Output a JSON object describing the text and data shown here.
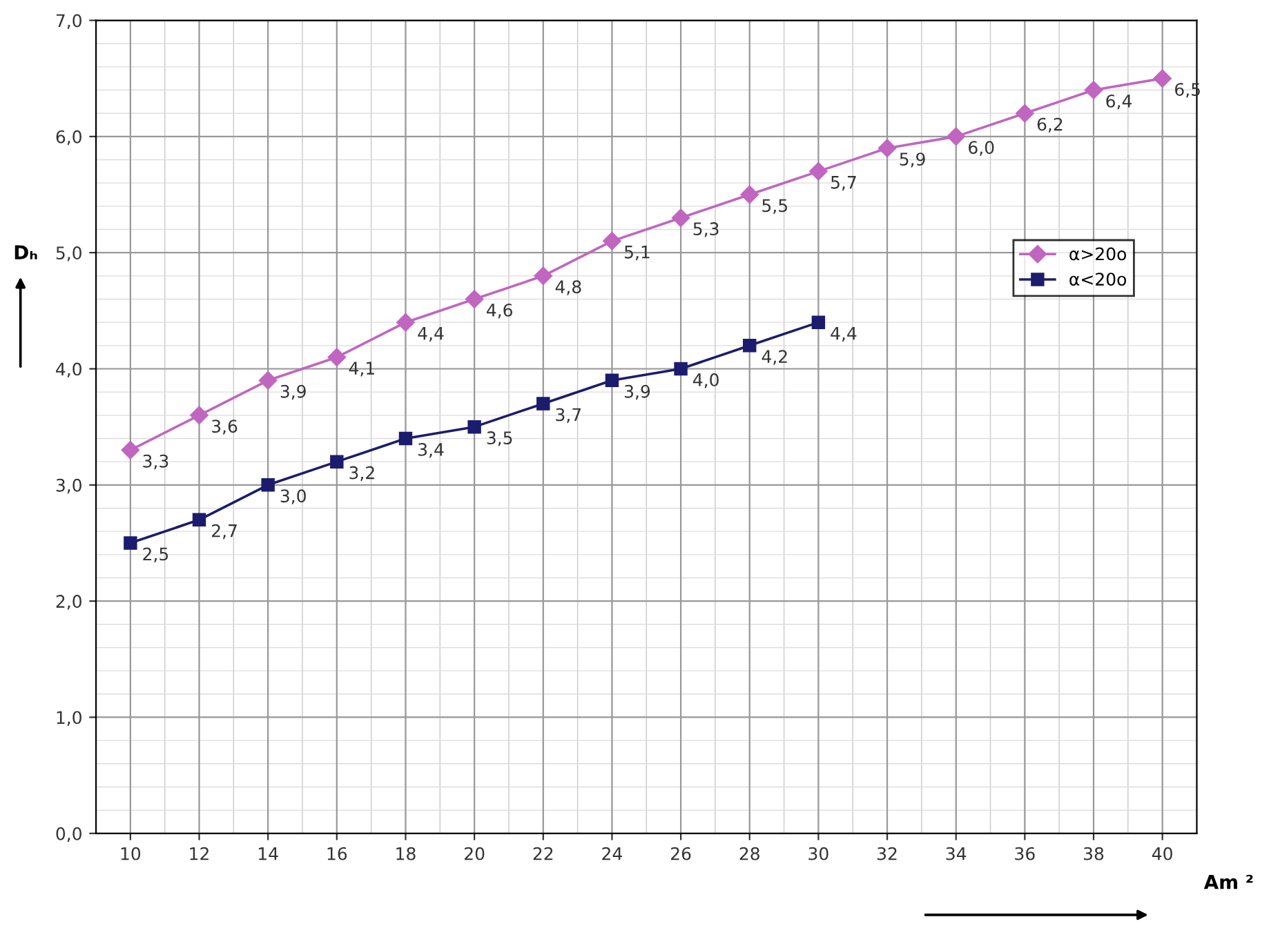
{
  "chart_data": {
    "type": "line",
    "xlabel": "Am ²",
    "ylabel": "Dₕ",
    "xlim": [
      9,
      41
    ],
    "xticks": [
      10,
      12,
      14,
      16,
      18,
      20,
      22,
      24,
      26,
      28,
      30,
      32,
      34,
      36,
      38,
      40
    ],
    "ylim": [
      0,
      7
    ],
    "yticks": [
      {
        "value": 0,
        "label": "0,0"
      },
      {
        "value": 1,
        "label": "1,0"
      },
      {
        "value": 2,
        "label": "2,0"
      },
      {
        "value": 3,
        "label": "3,0"
      },
      {
        "value": 4,
        "label": "4,0"
      },
      {
        "value": 5,
        "label": "5,0"
      },
      {
        "value": 6,
        "label": "6,0"
      },
      {
        "value": 7,
        "label": "7,0"
      }
    ],
    "grid": true,
    "legend": "right",
    "series": [
      {
        "name": "α>20o",
        "color": "#c066c0",
        "marker": "diamond",
        "x": [
          10,
          12,
          14,
          16,
          18,
          20,
          22,
          24,
          26,
          28,
          30,
          32,
          34,
          36,
          38,
          40
        ],
        "values": [
          3.3,
          3.6,
          3.9,
          4.1,
          4.4,
          4.6,
          4.8,
          5.1,
          5.3,
          5.5,
          5.7,
          5.9,
          6.0,
          6.2,
          6.4,
          6.5
        ],
        "value_labels": [
          "3,3",
          "3,6",
          "3,9",
          "4,1",
          "4,4",
          "4,6",
          "4,8",
          "5,1",
          "5,3",
          "5,5",
          "5,7",
          "5,9",
          "6,0",
          "6,2",
          "6,4",
          "6,5"
        ]
      },
      {
        "name": "α<20o",
        "color": "#1c1c6e",
        "marker": "square",
        "x": [
          10,
          12,
          14,
          16,
          18,
          20,
          22,
          24,
          26,
          28,
          30
        ],
        "values": [
          2.5,
          2.7,
          3.0,
          3.2,
          3.4,
          3.5,
          3.7,
          3.9,
          4.0,
          4.2,
          4.4
        ],
        "value_labels": [
          "2,5",
          "2,7",
          "3,0",
          "3,2",
          "3,4",
          "3,5",
          "3,7",
          "3,9",
          "4,0",
          "4,2",
          "4,4"
        ]
      }
    ]
  }
}
